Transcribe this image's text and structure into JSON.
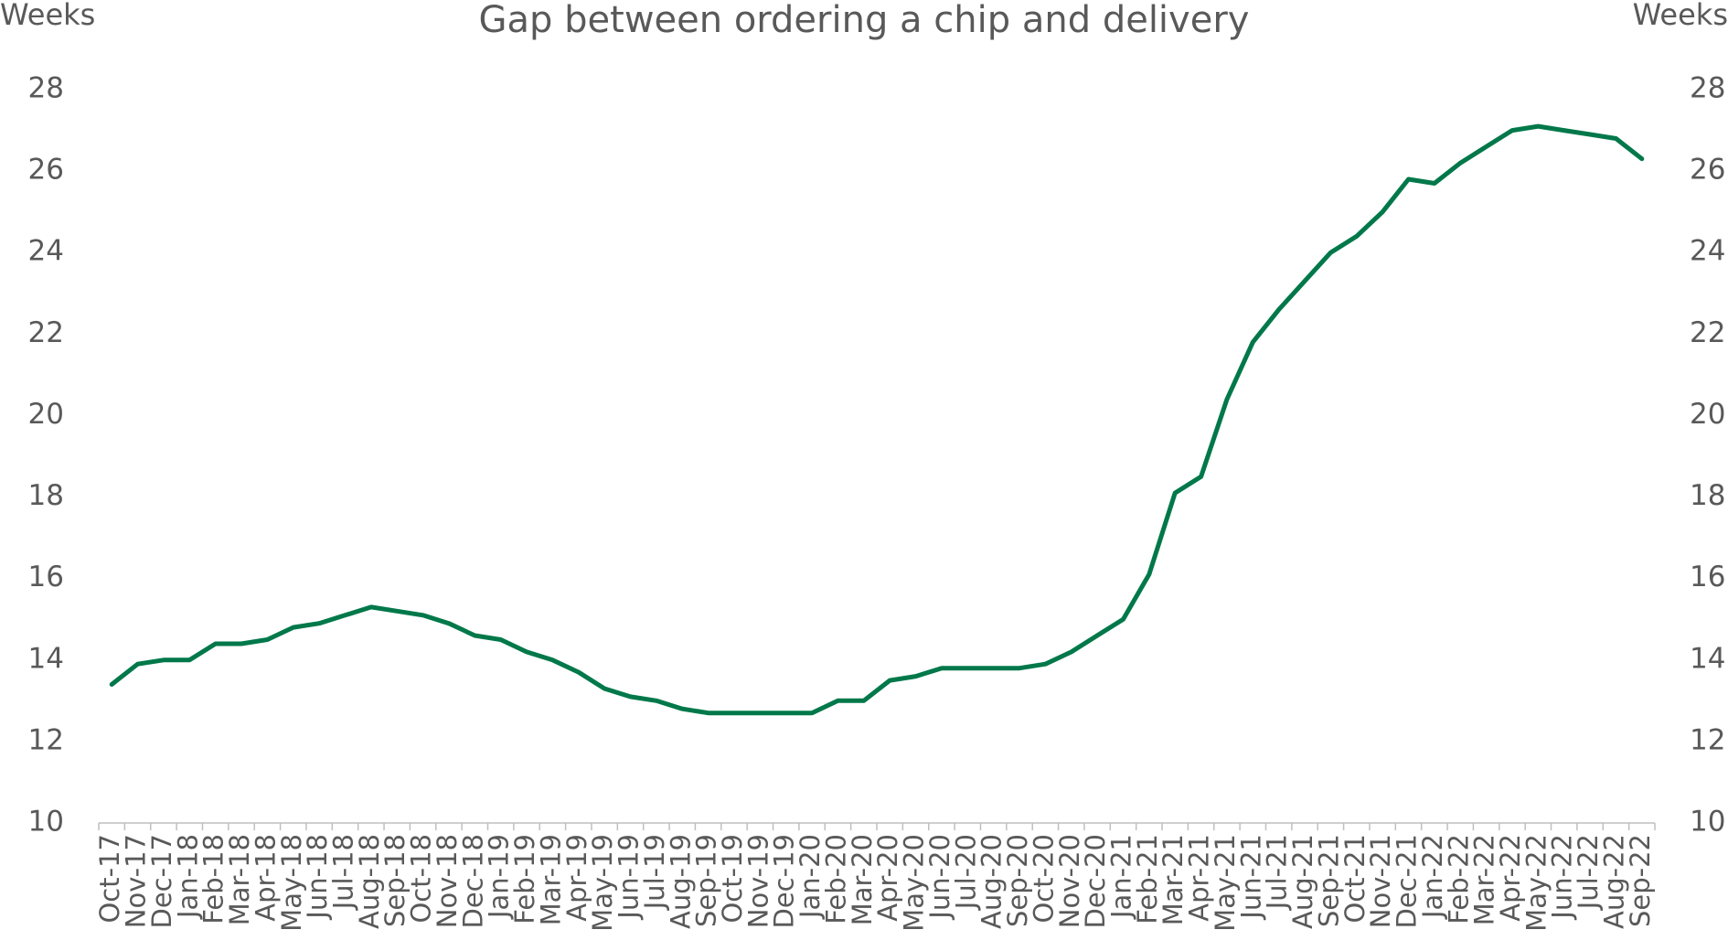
{
  "chart_data": {
    "type": "line",
    "title": "Gap between ordering a chip and delivery",
    "ylabel_left": "Weeks",
    "ylabel_right": "Weeks",
    "ylim": [
      10,
      28
    ],
    "yticks": [
      10,
      12,
      14,
      16,
      18,
      20,
      22,
      24,
      26,
      28
    ],
    "grid": false,
    "legend": "none",
    "color": "#00784A",
    "categories": [
      "Oct-17",
      "Nov-17",
      "Dec-17",
      "Jan-18",
      "Feb-18",
      "Mar-18",
      "Apr-18",
      "May-18",
      "Jun-18",
      "Jul-18",
      "Aug-18",
      "Sep-18",
      "Oct-18",
      "Nov-18",
      "Dec-18",
      "Jan-19",
      "Feb-19",
      "Mar-19",
      "Apr-19",
      "May-19",
      "Jun-19",
      "Jul-19",
      "Aug-19",
      "Sep-19",
      "Oct-19",
      "Nov-19",
      "Dec-19",
      "Jan-20",
      "Feb-20",
      "Mar-20",
      "Apr-20",
      "May-20",
      "Jun-20",
      "Jul-20",
      "Aug-20",
      "Sep-20",
      "Oct-20",
      "Nov-20",
      "Dec-20",
      "Jan-21",
      "Feb-21",
      "Mar-21",
      "Apr-21",
      "May-21",
      "Jun-21",
      "Jul-21",
      "Aug-21",
      "Sep-21",
      "Oct-21",
      "Nov-21",
      "Dec-21",
      "Jan-22",
      "Feb-22",
      "Mar-22",
      "Apr-22",
      "May-22",
      "Jun-22",
      "Jul-22",
      "Aug-22",
      "Sep-22"
    ],
    "series": [
      {
        "values": [
          13.4,
          13.9,
          14.0,
          14.0,
          14.4,
          14.4,
          14.5,
          14.8,
          14.9,
          15.1,
          15.3,
          15.2,
          15.1,
          14.9,
          14.6,
          14.5,
          14.2,
          14.0,
          13.7,
          13.3,
          13.1,
          13.0,
          12.8,
          12.7,
          12.7,
          12.7,
          12.7,
          12.7,
          13.0,
          13.0,
          13.5,
          13.6,
          13.8,
          13.8,
          13.8,
          13.8,
          13.9,
          14.2,
          14.6,
          15.0,
          16.1,
          18.1,
          18.5,
          20.4,
          21.8,
          22.6,
          23.3,
          24.0,
          24.4,
          25.0,
          25.8,
          25.7,
          26.2,
          26.6,
          27.0,
          27.1,
          27.0,
          26.9,
          26.8,
          26.3
        ]
      }
    ]
  }
}
